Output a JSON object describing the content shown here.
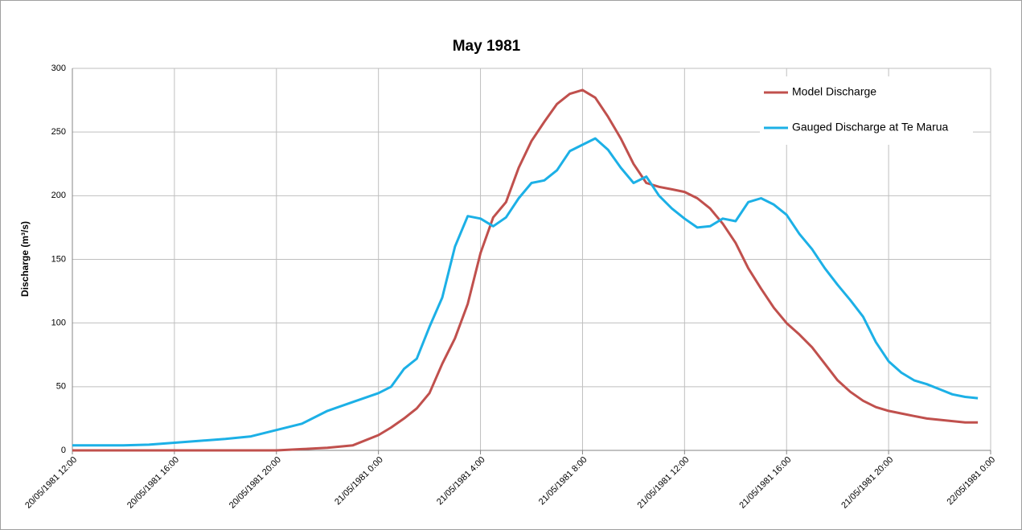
{
  "chart_data": {
    "type": "line",
    "title": "May 1981",
    "y_label": "Discharge (m³/s)",
    "x": [
      "20/05/1981 12:00",
      "20/05/1981 13:00",
      "20/05/1981 14:00",
      "20/05/1981 15:00",
      "20/05/1981 16:00",
      "20/05/1981 17:00",
      "20/05/1981 18:00",
      "20/05/1981 19:00",
      "20/05/1981 20:00",
      "20/05/1981 21:00",
      "20/05/1981 22:00",
      "20/05/1981 23:00",
      "21/05/1981 0:00",
      "21/05/1981 0:30",
      "21/05/1981 1:00",
      "21/05/1981 1:30",
      "21/05/1981 2:00",
      "21/05/1981 2:30",
      "21/05/1981 3:00",
      "21/05/1981 3:30",
      "21/05/1981 4:00",
      "21/05/1981 4:30",
      "21/05/1981 5:00",
      "21/05/1981 5:30",
      "21/05/1981 6:00",
      "21/05/1981 6:30",
      "21/05/1981 7:00",
      "21/05/1981 7:30",
      "21/05/1981 8:00",
      "21/05/1981 8:30",
      "21/05/1981 9:00",
      "21/05/1981 9:30",
      "21/05/1981 10:00",
      "21/05/1981 10:30",
      "21/05/1981 11:00",
      "21/05/1981 11:30",
      "21/05/1981 12:00",
      "21/05/1981 12:30",
      "21/05/1981 13:00",
      "21/05/1981 13:30",
      "21/05/1981 14:00",
      "21/05/1981 14:30",
      "21/05/1981 15:00",
      "21/05/1981 15:30",
      "21/05/1981 16:00",
      "21/05/1981 16:30",
      "21/05/1981 17:00",
      "21/05/1981 17:30",
      "21/05/1981 18:00",
      "21/05/1981 18:30",
      "21/05/1981 19:00",
      "21/05/1981 19:30",
      "21/05/1981 20:00",
      "21/05/1981 20:30",
      "21/05/1981 21:00",
      "21/05/1981 21:30",
      "21/05/1981 22:00",
      "21/05/1981 22:30",
      "21/05/1981 23:00",
      "21/05/1981 23:30"
    ],
    "series": [
      {
        "name": "Model Discharge",
        "color": "#c0504d",
        "values": [
          0,
          0,
          0,
          0,
          0,
          0,
          0,
          0,
          0,
          1,
          2,
          4,
          12,
          18,
          25,
          33,
          45,
          68,
          88,
          115,
          155,
          183,
          195,
          222,
          243,
          258,
          272,
          280,
          283,
          277,
          262,
          245,
          225,
          210,
          207,
          205,
          203,
          198,
          190,
          178,
          163,
          143,
          127,
          112,
          100,
          91,
          81,
          68,
          55,
          46,
          39,
          34,
          31,
          29,
          27,
          25,
          24,
          23,
          22,
          22
        ]
      },
      {
        "name": "Gauged Discharge at Te Marua",
        "color": "#1cb0e6",
        "values": [
          4,
          4,
          4,
          4.5,
          6,
          7.5,
          9,
          11,
          16,
          21,
          31,
          38,
          45,
          50,
          64,
          72,
          97,
          120,
          160,
          184,
          182,
          176,
          183,
          198,
          210,
          212,
          220,
          235,
          240,
          245,
          236,
          222,
          210,
          215,
          200,
          190,
          182,
          175,
          176,
          182,
          180,
          195,
          198,
          193,
          185,
          170,
          158,
          143,
          130,
          118,
          105,
          85,
          70,
          61,
          55,
          52,
          48,
          44,
          42,
          41
        ]
      }
    ],
    "xlim": [
      "20/05/1981 12:00",
      "22/05/1981 0:00"
    ],
    "xticks": [
      "20/05/1981 12:00",
      "20/05/1981 16:00",
      "20/05/1981 20:00",
      "21/05/1981 0:00",
      "21/05/1981 4:00",
      "21/05/1981 8:00",
      "21/05/1981 12:00",
      "21/05/1981 16:00",
      "21/05/1981 20:00",
      "22/05/1981 0:00"
    ],
    "ylim": [
      0,
      300
    ],
    "yticks": [
      0,
      50,
      100,
      150,
      200,
      250,
      300
    ],
    "grid": true,
    "legend": "upper right"
  }
}
